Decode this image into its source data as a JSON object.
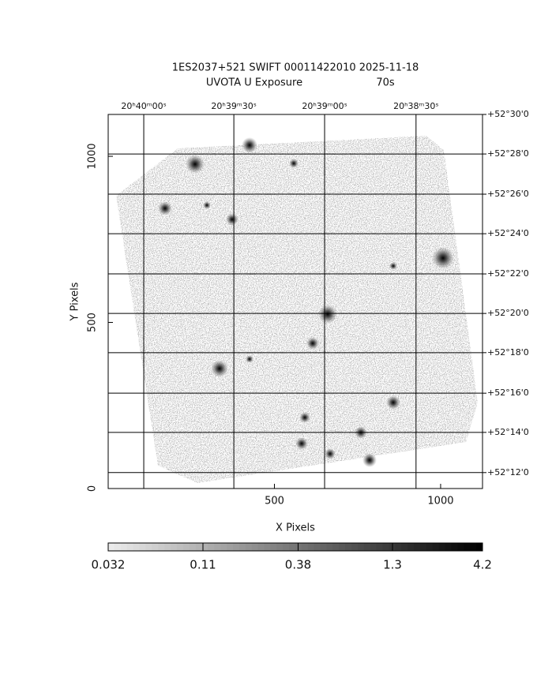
{
  "chart_data": {
    "type": "image",
    "title": "1ES2037+521 SWIFT 00011422010 2025-11-18",
    "subtitle": "UVOTA U Exposure",
    "exposure": "70s",
    "xlabel": "X Pixels",
    "ylabel": "Y Pixels",
    "xlim": [
      0,
      1126
    ],
    "ylim": [
      0,
      1126
    ],
    "xticks": [
      500,
      1000
    ],
    "yticks": [
      0,
      500,
      1000
    ],
    "grid": true,
    "top_ticks": [
      {
        "value": 107,
        "label": "20ʰ40ᵐ00ˢ"
      },
      {
        "value": 378,
        "label": "20ʰ39ᵐ30ˢ"
      },
      {
        "value": 651,
        "label": "20ʰ39ᵐ00ˢ"
      },
      {
        "value": 926,
        "label": "20ʰ38ᵐ30ˢ"
      }
    ],
    "right_ticks": [
      {
        "value": 1126,
        "label": "+52°30'0"
      },
      {
        "value": 1007,
        "label": "+52°28'0"
      },
      {
        "value": 886,
        "label": "+52°26'0"
      },
      {
        "value": 767,
        "label": "+52°24'0"
      },
      {
        "value": 646,
        "label": "+52°22'0"
      },
      {
        "value": 527,
        "label": "+52°20'0"
      },
      {
        "value": 409,
        "label": "+52°18'0"
      },
      {
        "value": 287,
        "label": "+52°16'0"
      },
      {
        "value": 169,
        "label": "+52°14'0"
      },
      {
        "value": 48,
        "label": "+52°12'0"
      }
    ],
    "colorbar": {
      "log": true,
      "lim": [
        0.032,
        4.2
      ],
      "ticks": [
        0.032,
        0.11,
        0.38,
        1.3,
        4.2
      ]
    }
  }
}
